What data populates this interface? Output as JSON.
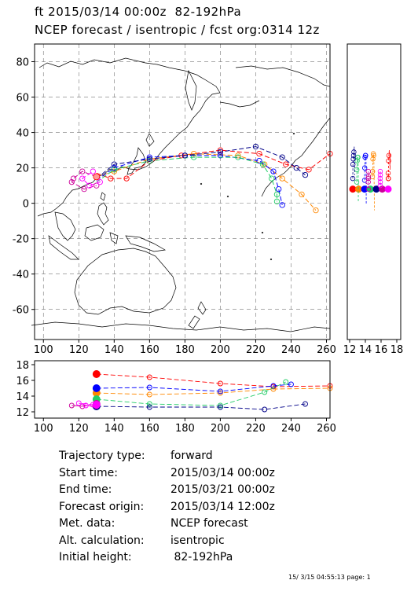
{
  "header": {
    "line1": "ft 2015/03/14 00:00z  82-192hPa",
    "line2": "NCEP forecast / isentropic / fcst org:0314 12z"
  },
  "chart_data": {
    "type": "line",
    "main_map": {
      "xlim": [
        95,
        262
      ],
      "ylim": [
        -77,
        90
      ],
      "x_ticks": [
        100,
        120,
        140,
        160,
        180,
        200,
        220,
        240,
        260
      ],
      "y_ticks": [
        80,
        60,
        40,
        20,
        0,
        -20,
        -40,
        -60
      ],
      "grid": "dashed"
    },
    "side_panel": {
      "xlim": [
        11.7,
        18.5
      ],
      "x_ticks": [
        12,
        14,
        16,
        18
      ]
    },
    "height_panel": {
      "xlim": [
        95,
        262
      ],
      "ylim": [
        11.2,
        18.5
      ],
      "x_ticks": [
        100,
        120,
        140,
        160,
        180,
        200,
        220,
        240,
        260
      ],
      "y_ticks": [
        18,
        16,
        14,
        12
      ]
    },
    "series": [
      {
        "color": "#ff0000",
        "points": [
          [
            130,
            17
          ],
          [
            138,
            14
          ],
          [
            147,
            14
          ],
          [
            160,
            24
          ],
          [
            178,
            27
          ],
          [
            200,
            30
          ],
          [
            222,
            28
          ],
          [
            237,
            22
          ],
          [
            250,
            19
          ],
          [
            262,
            28
          ]
        ],
        "heights": [
          [
            130,
            16.8
          ],
          [
            160,
            16.4
          ],
          [
            200,
            15.6
          ],
          [
            230,
            15.2
          ],
          [
            262,
            15.3
          ]
        ]
      },
      {
        "color": "#ff8800",
        "points": [
          [
            130,
            15
          ],
          [
            140,
            18
          ],
          [
            160,
            25
          ],
          [
            185,
            28
          ],
          [
            210,
            27
          ],
          [
            225,
            22
          ],
          [
            235,
            14
          ],
          [
            246,
            5
          ],
          [
            254,
            -4
          ]
        ],
        "heights": [
          [
            130,
            14.4
          ],
          [
            160,
            14.2
          ],
          [
            200,
            14.4
          ],
          [
            230,
            14.9
          ],
          [
            262,
            15.0
          ]
        ]
      },
      {
        "color": "#0000ff",
        "points": [
          [
            130,
            13
          ],
          [
            140,
            20
          ],
          [
            160,
            26
          ],
          [
            180,
            27
          ],
          [
            200,
            27
          ],
          [
            222,
            24
          ],
          [
            230,
            18
          ],
          [
            233,
            8
          ],
          [
            235,
            -1
          ]
        ],
        "heights": [
          [
            130,
            15.0
          ],
          [
            160,
            15.1
          ],
          [
            200,
            14.6
          ],
          [
            230,
            15.3
          ],
          [
            240,
            15.5
          ]
        ]
      },
      {
        "color": "#22cc66",
        "points": [
          [
            130,
            12
          ],
          [
            140,
            19
          ],
          [
            160,
            24
          ],
          [
            185,
            26
          ],
          [
            210,
            26
          ],
          [
            224,
            22
          ],
          [
            229,
            14
          ],
          [
            232,
            5
          ],
          [
            232,
            1
          ]
        ],
        "heights": [
          [
            130,
            13.6
          ],
          [
            160,
            13.0
          ],
          [
            200,
            12.8
          ],
          [
            225,
            14.5
          ],
          [
            237,
            15.8
          ]
        ]
      },
      {
        "color": "#000088",
        "points": [
          [
            130,
            14
          ],
          [
            140,
            22
          ],
          [
            160,
            25
          ],
          [
            180,
            27
          ],
          [
            200,
            29
          ],
          [
            220,
            32
          ],
          [
            235,
            26
          ],
          [
            243,
            20
          ],
          [
            248,
            16
          ]
        ],
        "heights": [
          [
            130,
            12.7
          ],
          [
            160,
            12.6
          ],
          [
            200,
            12.6
          ],
          [
            225,
            12.3
          ],
          [
            248,
            13.0
          ]
        ]
      },
      {
        "color": "#cc0099",
        "points": [
          [
            130,
            15
          ],
          [
            122,
            18
          ],
          [
            117,
            14
          ],
          [
            116,
            12
          ],
          [
            123,
            8
          ],
          [
            130,
            10
          ]
        ],
        "heights": [
          [
            130,
            13.0
          ],
          [
            122,
            12.7
          ],
          [
            116,
            12.8
          ],
          [
            130,
            12.7
          ]
        ]
      },
      {
        "color": "#ff00ff",
        "points": [
          [
            130,
            16
          ],
          [
            132,
            12
          ],
          [
            126,
            10
          ],
          [
            122,
            14
          ],
          [
            128,
            18
          ]
        ],
        "heights": [
          [
            130,
            12.9
          ],
          [
            124,
            12.8
          ],
          [
            120,
            13.1
          ],
          [
            128,
            12.9
          ]
        ]
      }
    ]
  },
  "info": {
    "rows": [
      {
        "label": "Trajectory type:",
        "value": "forward"
      },
      {
        "label": "Start time:",
        "value": "2015/03/14 00:00z"
      },
      {
        "label": "End time:",
        "value": "2015/03/21 00:00z"
      },
      {
        "label": "Forecast origin:",
        "value": "2015/03/14 12:00z"
      },
      {
        "label": "Met. data:",
        "value": "NCEP forecast"
      },
      {
        "label": "Alt. calculation:",
        "value": "isentropic"
      },
      {
        "label": "Initial height:",
        "value": " 82-192hPa"
      }
    ]
  },
  "footer": {
    "text": "15/ 3/15 04:55:13 page: 1"
  }
}
